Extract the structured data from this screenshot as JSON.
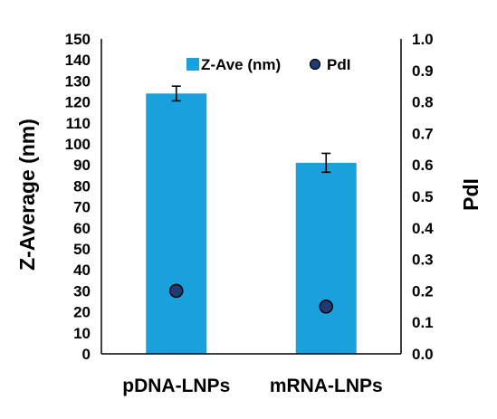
{
  "chart_data": {
    "type": "bar",
    "categories": [
      "pDNA-LNPs",
      "mRNA-LNPs"
    ],
    "series": [
      {
        "name": "Z-Ave (nm)",
        "kind": "bar",
        "axis": "left",
        "values": [
          124,
          91
        ],
        "error": [
          3.5,
          4.5
        ],
        "color": "#1aa0db"
      },
      {
        "name": "PdI",
        "kind": "scatter",
        "axis": "right",
        "values": [
          0.2,
          0.15
        ],
        "error": [
          0.015,
          0.015
        ],
        "color": "#1f3b73"
      }
    ],
    "ylabel": "Z-Average (nm)",
    "y2label": "PdI",
    "ylim": [
      0,
      150
    ],
    "y2lim": [
      0,
      1.0
    ],
    "yticks": [
      "0",
      "10",
      "20",
      "30",
      "40",
      "50",
      "60",
      "70",
      "80",
      "90",
      "100",
      "110",
      "120",
      "130",
      "140",
      "150"
    ],
    "y2ticks": [
      "0.0",
      "0.1",
      "0.2",
      "0.3",
      "0.4",
      "0.5",
      "0.6",
      "0.7",
      "0.8",
      "0.9",
      "1.0"
    ],
    "grid": false,
    "legend": "top"
  }
}
